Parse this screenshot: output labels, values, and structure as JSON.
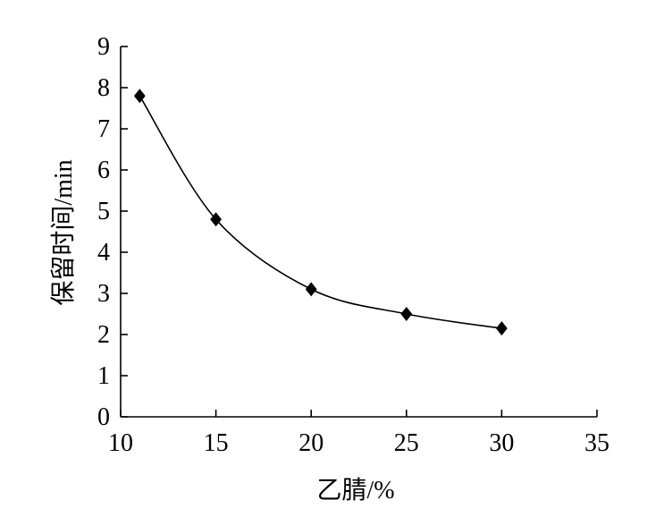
{
  "chart_data": {
    "type": "line",
    "title": "",
    "xlabel": "乙腈/%",
    "ylabel": "保留时间/min",
    "xlim": [
      10,
      35
    ],
    "ylim": [
      0,
      9
    ],
    "xticks": [
      10,
      15,
      20,
      25,
      30,
      35
    ],
    "yticks": [
      0,
      1,
      2,
      3,
      4,
      5,
      6,
      7,
      8,
      9
    ],
    "grid": false,
    "legend": "none",
    "line_style": "smooth",
    "marker": "diamond",
    "series": [
      {
        "x": [
          11,
          15,
          20,
          25,
          30
        ],
        "y": [
          7.8,
          4.8,
          3.1,
          2.5,
          2.15
        ]
      }
    ],
    "colors": {
      "line": "#000000",
      "marker": "#000000"
    }
  }
}
